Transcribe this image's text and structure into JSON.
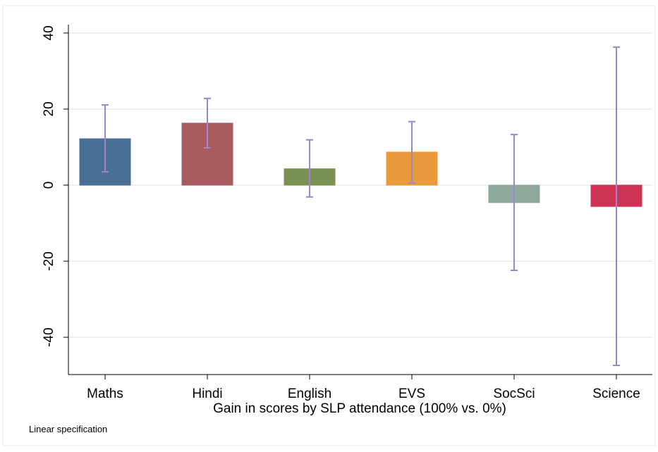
{
  "chart_data": {
    "type": "bar",
    "x_label": "Gain in scores by SLP attendance (100% vs. 0%)",
    "note": "Linear specification",
    "categories": [
      "Maths",
      "Hindi",
      "English",
      "EVS",
      "SocSci",
      "Science"
    ],
    "values": [
      12.2,
      16.3,
      4.3,
      8.7,
      -4.6,
      -5.6
    ],
    "ci_low": [
      3.5,
      9.8,
      -3.1,
      0.6,
      -22.4,
      -47.4
    ],
    "ci_high": [
      21.1,
      22.8,
      11.9,
      16.7,
      13.3,
      36.3
    ],
    "colors": [
      "#4a6f94",
      "#a85a5e",
      "#7a9154",
      "#e89a3c",
      "#8ea89c",
      "#cc3355"
    ],
    "error_color": "#9a86c8",
    "ylim": [
      -49.8,
      42.2
    ],
    "yticks": [
      -40,
      -20,
      0,
      20,
      40
    ],
    "grid": true
  }
}
